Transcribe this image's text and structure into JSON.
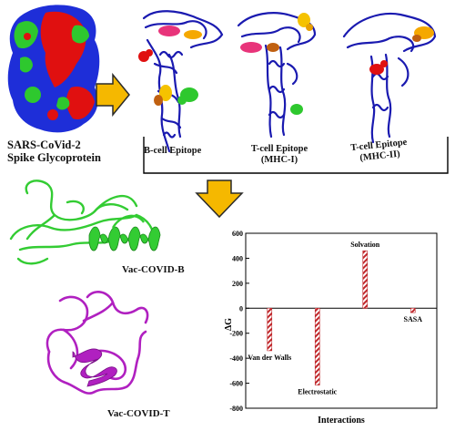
{
  "labels": {
    "spike": [
      "SARS-CoVid-2",
      "Spike Glycoprotein"
    ],
    "bcell": "B-cell Epitope",
    "tcell_mhc1": [
      "T-cell Epitope",
      "(MHC-I)"
    ],
    "tcell_mhc2": [
      "T-cell Epitope",
      "(MHC-II)"
    ],
    "vac_b": "Vac-COVID-B",
    "vac_t": "Vac-COVID-T"
  },
  "colors": {
    "arrow": "#f5b800",
    "protein_blue": "#1a1ab0",
    "surface_blue": "#1e2ed8",
    "surface_red": "#e01010",
    "surface_green": "#2ec82e",
    "vac_b_green": "#33cc33",
    "vac_t_magenta": "#b020c0",
    "bar_red": "#c0282c"
  },
  "chart_data": {
    "type": "bar",
    "categories": [
      "Van der Walls",
      "Electrostatic",
      "Solvation",
      "SASA"
    ],
    "values": [
      -340,
      -615,
      460,
      -35
    ],
    "xlabel": "Interactions",
    "ylabel": "ΔG",
    "ylim": [
      -800,
      600
    ],
    "yticks": [
      "600",
      "400",
      "200",
      "0",
      "-200",
      "-400",
      "-600",
      "-800"
    ],
    "bar_fill": "hatched red"
  }
}
